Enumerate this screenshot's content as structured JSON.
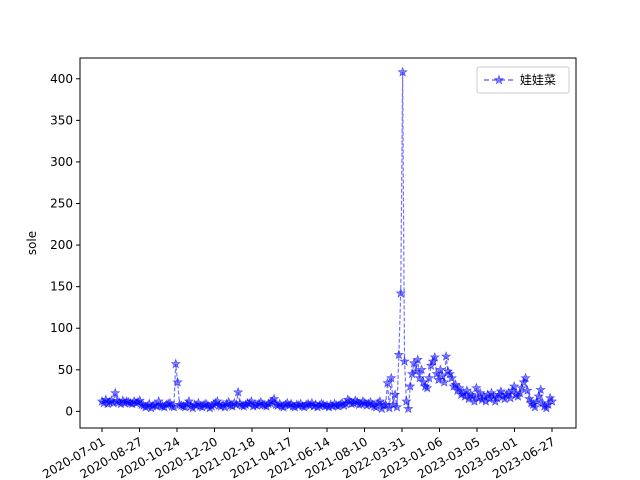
{
  "chart_data": {
    "type": "line",
    "title": "",
    "xlabel": "",
    "ylabel": "sole",
    "x_ticks": [
      "2020-07-01",
      "2020-08-27",
      "2020-10-24",
      "2020-12-20",
      "2021-02-18",
      "2021-04-17",
      "2021-06-14",
      "2021-08-10",
      "2022-03-31",
      "2023-01-06",
      "2023-03-05",
      "2023-05-01",
      "2023-06-27"
    ],
    "y_ticks": [
      0,
      50,
      100,
      150,
      200,
      250,
      300,
      350,
      400
    ],
    "ylim": [
      -20,
      425
    ],
    "grid": false,
    "legend_position": "top-right",
    "series": [
      {
        "name": "娃娃菜",
        "color": "#0000ff",
        "marker": "star",
        "line_style": "dashed",
        "values": [
          12,
          10,
          14,
          9,
          11,
          13,
          10,
          22,
          12,
          11,
          9,
          13,
          10,
          12,
          11,
          10,
          9,
          12,
          10,
          11,
          13,
          8,
          7,
          5,
          6,
          9,
          4,
          7,
          8,
          6,
          12,
          7,
          6,
          5,
          8,
          9,
          10,
          6,
          5,
          57,
          35,
          8,
          7,
          6,
          5,
          9,
          12,
          6,
          4,
          8,
          7,
          10,
          6,
          5,
          8,
          9,
          7,
          4,
          6,
          8,
          10,
          12,
          7,
          6,
          8,
          5,
          9,
          11,
          7,
          6,
          10,
          8,
          23,
          9,
          7,
          6,
          8,
          10,
          9,
          12,
          6,
          8,
          7,
          9,
          11,
          8,
          7,
          6,
          9,
          10,
          12,
          15,
          8,
          7,
          9,
          6,
          5,
          8,
          10,
          7,
          9,
          6,
          5,
          8,
          7,
          9,
          6,
          5,
          8,
          9,
          7,
          10,
          6,
          8,
          5,
          7,
          9,
          8,
          6,
          7,
          5,
          8,
          6,
          9,
          7,
          6,
          8,
          10,
          7,
          9,
          14,
          12,
          9,
          10,
          13,
          11,
          8,
          9,
          12,
          10,
          7,
          9,
          11,
          8,
          6,
          5,
          10,
          12,
          3,
          7,
          8,
          34,
          4,
          40,
          8,
          20,
          5,
          68,
          142,
          408,
          60,
          12,
          3,
          30,
          45,
          58,
          48,
          62,
          40,
          50,
          35,
          30,
          28,
          40,
          55,
          60,
          65,
          45,
          38,
          50,
          42,
          35,
          66,
          48,
          45,
          40,
          30,
          32,
          25,
          28,
          20,
          22,
          18,
          25,
          15,
          20,
          18,
          12,
          28,
          16,
          22,
          14,
          18,
          12,
          20,
          15,
          22,
          18,
          12,
          16,
          20,
          24,
          18,
          15,
          20,
          22,
          16,
          25,
          30,
          20,
          18,
          22,
          28,
          35,
          40,
          25,
          15,
          10,
          8,
          5,
          12,
          18,
          26,
          10,
          6,
          4,
          8,
          16,
          12
        ]
      }
    ]
  }
}
